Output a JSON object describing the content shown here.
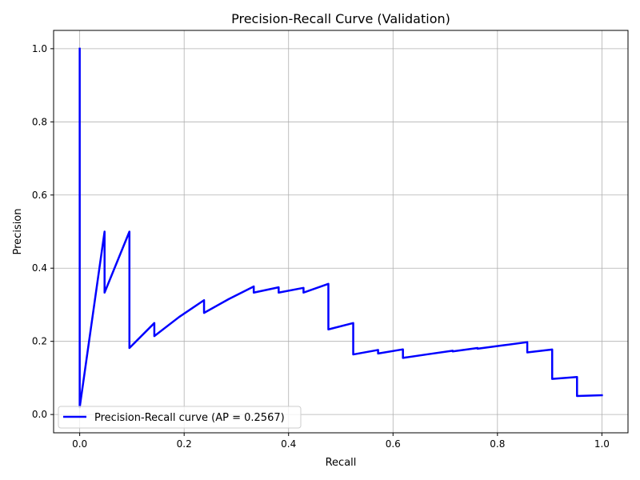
{
  "chart_data": {
    "type": "line",
    "title": "Precision-Recall Curve (Validation)",
    "xlabel": "Recall",
    "ylabel": "Precision",
    "xlim": [
      -0.05,
      1.05
    ],
    "ylim": [
      -0.05,
      1.05
    ],
    "xticks": [
      0.0,
      0.2,
      0.4,
      0.6,
      0.8,
      1.0
    ],
    "yticks": [
      0.0,
      0.2,
      0.4,
      0.6,
      0.8,
      1.0
    ],
    "xtick_labels": [
      "0.0",
      "0.2",
      "0.4",
      "0.6",
      "0.8",
      "1.0"
    ],
    "ytick_labels": [
      "0.0",
      "0.2",
      "0.4",
      "0.6",
      "0.8",
      "1.0"
    ],
    "grid": true,
    "legend_position": "lower-left",
    "series": [
      {
        "name": "Precision-Recall curve (AP = 0.2567)",
        "color": "#0000ff",
        "x": [
          0.0,
          0.0,
          0.0476,
          0.0476,
          0.0952,
          0.0952,
          0.1429,
          0.1429,
          0.1905,
          0.2381,
          0.2381,
          0.2857,
          0.3333,
          0.3333,
          0.381,
          0.381,
          0.4286,
          0.4286,
          0.4762,
          0.4762,
          0.5238,
          0.5238,
          0.5714,
          0.5714,
          0.619,
          0.619,
          0.6667,
          0.7143,
          0.7143,
          0.7619,
          0.7619,
          0.8095,
          0.8571,
          0.8571,
          0.9048,
          0.9048,
          0.9524,
          0.9524,
          1.0
        ],
        "y": [
          1.0,
          0.0196,
          0.5,
          0.3333,
          0.5,
          0.1818,
          0.25,
          0.2143,
          0.2667,
          0.3125,
          0.2778,
          0.3158,
          0.35,
          0.3333,
          0.3478,
          0.3333,
          0.3462,
          0.3333,
          0.3571,
          0.2326,
          0.25,
          0.1642,
          0.1765,
          0.1667,
          0.1781,
          0.1548,
          0.1647,
          0.1744,
          0.1724,
          0.1818,
          0.1798,
          0.1889,
          0.1978,
          0.1698,
          0.1776,
          0.0974,
          0.1026,
          0.0506,
          0.0528
        ]
      }
    ]
  }
}
